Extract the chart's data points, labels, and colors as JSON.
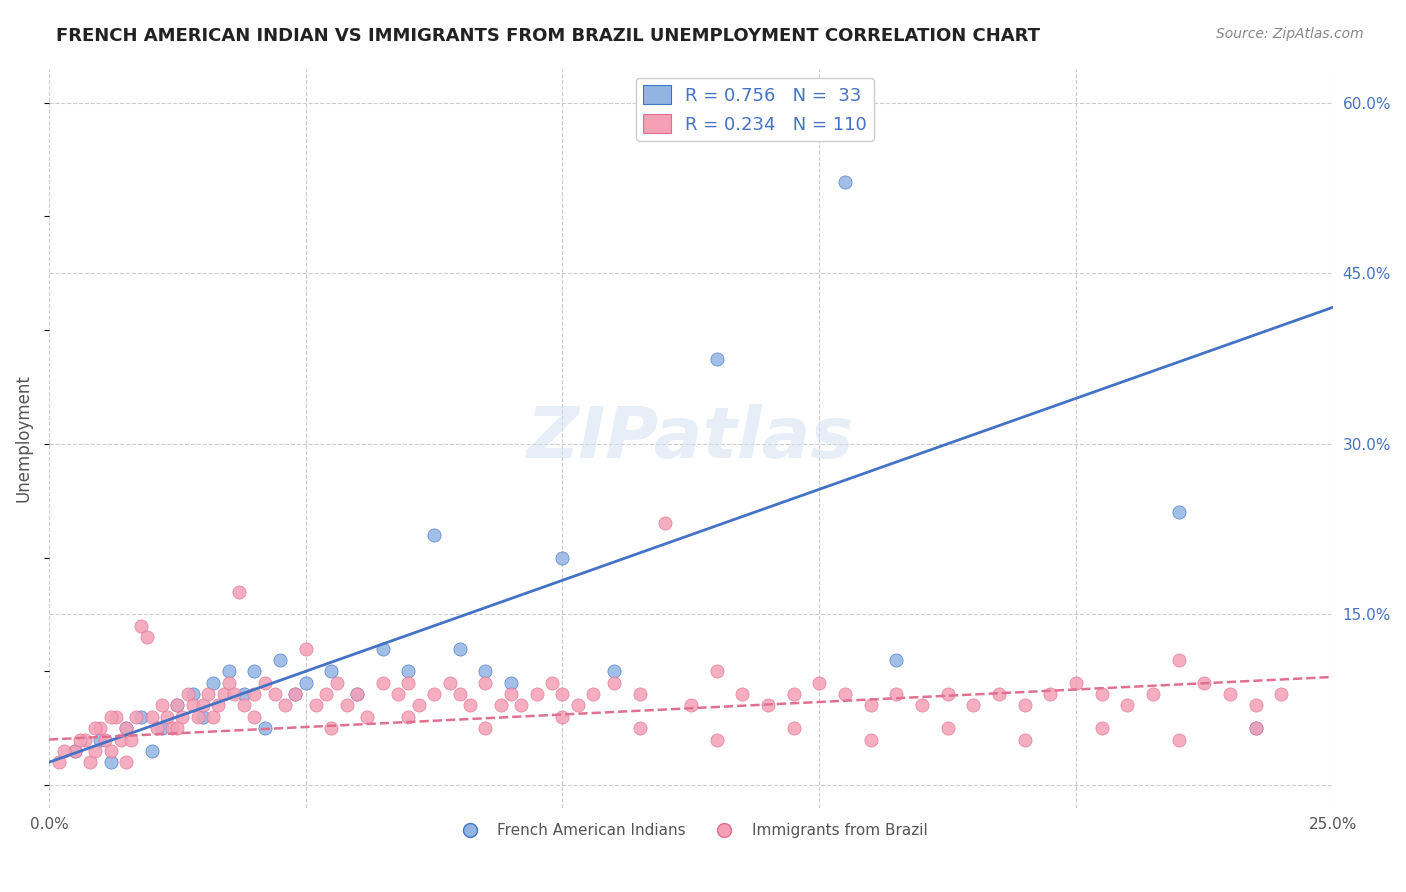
{
  "title": "FRENCH AMERICAN INDIAN VS IMMIGRANTS FROM BRAZIL UNEMPLOYMENT CORRELATION CHART",
  "source": "Source: ZipAtlas.com",
  "ylabel": "Unemployment",
  "xlabel_ticks": [
    "0.0%",
    "25.0%"
  ],
  "ylabel_ticks": [
    0.0,
    0.15,
    0.3,
    0.45,
    0.6
  ],
  "ylabel_tick_labels": [
    "",
    "15.0%",
    "30.0%",
    "45.0%",
    "60.0%"
  ],
  "watermark": "ZIPatlas",
  "xlim": [
    0.0,
    0.25
  ],
  "ylim": [
    -0.02,
    0.63
  ],
  "blue_R": 0.756,
  "blue_N": 33,
  "pink_R": 0.234,
  "pink_N": 110,
  "blue_color": "#92b4e3",
  "pink_color": "#f4a0b5",
  "blue_line_color": "#4472c4",
  "pink_line_color": "#e07090",
  "title_color": "#222222",
  "axis_label_color": "#4472c4",
  "legend_text_color": "#4472c4",
  "grid_color": "#cccccc",
  "background_color": "#ffffff",
  "blue_scatter_x": [
    0.005,
    0.01,
    0.012,
    0.015,
    0.018,
    0.02,
    0.022,
    0.025,
    0.028,
    0.03,
    0.032,
    0.035,
    0.038,
    0.04,
    0.042,
    0.045,
    0.048,
    0.05,
    0.055,
    0.06,
    0.065,
    0.07,
    0.075,
    0.08,
    0.085,
    0.09,
    0.1,
    0.11,
    0.13,
    0.155,
    0.165,
    0.22,
    0.235
  ],
  "blue_scatter_y": [
    0.03,
    0.04,
    0.02,
    0.05,
    0.06,
    0.03,
    0.05,
    0.07,
    0.08,
    0.06,
    0.09,
    0.1,
    0.08,
    0.1,
    0.05,
    0.11,
    0.08,
    0.09,
    0.1,
    0.08,
    0.12,
    0.1,
    0.22,
    0.12,
    0.1,
    0.09,
    0.2,
    0.1,
    0.375,
    0.53,
    0.11,
    0.24,
    0.05
  ],
  "pink_scatter_x": [
    0.002,
    0.005,
    0.007,
    0.008,
    0.009,
    0.01,
    0.011,
    0.012,
    0.013,
    0.014,
    0.015,
    0.016,
    0.017,
    0.018,
    0.019,
    0.02,
    0.021,
    0.022,
    0.023,
    0.024,
    0.025,
    0.026,
    0.027,
    0.028,
    0.029,
    0.03,
    0.031,
    0.032,
    0.033,
    0.034,
    0.035,
    0.036,
    0.037,
    0.038,
    0.04,
    0.042,
    0.044,
    0.046,
    0.048,
    0.05,
    0.052,
    0.054,
    0.056,
    0.058,
    0.06,
    0.062,
    0.065,
    0.068,
    0.07,
    0.072,
    0.075,
    0.078,
    0.08,
    0.082,
    0.085,
    0.088,
    0.09,
    0.092,
    0.095,
    0.098,
    0.1,
    0.103,
    0.106,
    0.11,
    0.115,
    0.12,
    0.125,
    0.13,
    0.135,
    0.14,
    0.145,
    0.15,
    0.155,
    0.16,
    0.165,
    0.17,
    0.175,
    0.18,
    0.185,
    0.19,
    0.195,
    0.2,
    0.205,
    0.21,
    0.215,
    0.22,
    0.225,
    0.23,
    0.235,
    0.24,
    0.003,
    0.006,
    0.009,
    0.012,
    0.025,
    0.04,
    0.055,
    0.07,
    0.085,
    0.1,
    0.115,
    0.13,
    0.145,
    0.16,
    0.175,
    0.19,
    0.205,
    0.22,
    0.235,
    0.015
  ],
  "pink_scatter_y": [
    0.02,
    0.03,
    0.04,
    0.02,
    0.03,
    0.05,
    0.04,
    0.03,
    0.06,
    0.04,
    0.05,
    0.04,
    0.06,
    0.14,
    0.13,
    0.06,
    0.05,
    0.07,
    0.06,
    0.05,
    0.07,
    0.06,
    0.08,
    0.07,
    0.06,
    0.07,
    0.08,
    0.06,
    0.07,
    0.08,
    0.09,
    0.08,
    0.17,
    0.07,
    0.08,
    0.09,
    0.08,
    0.07,
    0.08,
    0.12,
    0.07,
    0.08,
    0.09,
    0.07,
    0.08,
    0.06,
    0.09,
    0.08,
    0.09,
    0.07,
    0.08,
    0.09,
    0.08,
    0.07,
    0.09,
    0.07,
    0.08,
    0.07,
    0.08,
    0.09,
    0.08,
    0.07,
    0.08,
    0.09,
    0.08,
    0.23,
    0.07,
    0.1,
    0.08,
    0.07,
    0.08,
    0.09,
    0.08,
    0.07,
    0.08,
    0.07,
    0.08,
    0.07,
    0.08,
    0.07,
    0.08,
    0.09,
    0.08,
    0.07,
    0.08,
    0.11,
    0.09,
    0.08,
    0.07,
    0.08,
    0.03,
    0.04,
    0.05,
    0.06,
    0.05,
    0.06,
    0.05,
    0.06,
    0.05,
    0.06,
    0.05,
    0.04,
    0.05,
    0.04,
    0.05,
    0.04,
    0.05,
    0.04,
    0.05,
    0.02
  ],
  "blue_line_x": [
    0.0,
    0.25
  ],
  "blue_line_y_intercept": 0.02,
  "blue_line_slope": 1.6,
  "pink_line_x": [
    0.0,
    0.25
  ],
  "pink_line_y_intercept": 0.04,
  "pink_line_slope": 0.22
}
